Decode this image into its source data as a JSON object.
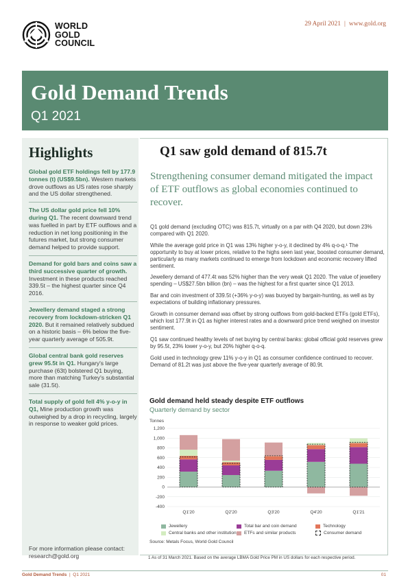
{
  "header": {
    "logo_lines": [
      "WORLD",
      "GOLD",
      "COUNCIL"
    ],
    "date": "29 April 2021",
    "website": "www.gold.org"
  },
  "banner": {
    "title": "Gold Demand Trends",
    "subtitle": "Q1 2021"
  },
  "highlights": {
    "heading": "Highlights",
    "items": [
      {
        "bold": "Global gold ETF holdings fell by 177.9 tonnes (t) (US$9.5bn).",
        "text": " Western markets drove outflows as US rates rose sharply and the US dollar strengthened."
      },
      {
        "bold": "The US dollar gold price fell 10% during Q1.",
        "text": " The recent downward trend was fuelled in part by ETF outflows and a reduction in net long positioning in the futures market, but strong consumer demand helped to provide support."
      },
      {
        "bold": "Demand for gold bars and coins saw a third successive quarter of growth.",
        "text": " Investment in these products reached 339.5t – the highest quarter since Q4 2016."
      },
      {
        "bold": "Jewellery demand staged a strong recovery from lockdown-stricken Q1 2020.",
        "text": " But it remained relatively subdued on a historic basis – 6% below the five-year quarterly average of 505.9t."
      },
      {
        "bold": "Global central bank gold reserves grew 95.5t in Q1.",
        "text": " Hungary's large purchase (63t) bolstered Q1 buying, more than matching Turkey's substantial sale (31.5t)."
      },
      {
        "bold": "Total supply of gold fell 4% y-o-y in Q1,",
        "text": " Mine production growth was outweighed by a drop in recycling, largely in response to weaker gold prices."
      }
    ],
    "contact_line1": "For more information please contact:",
    "contact_line2": "research@gold.org"
  },
  "main": {
    "title": "Q1 saw gold demand of 815.7t",
    "lead": "Strengthening consumer demand mitigated the impact of ETF outflows as global economies continued to recover.",
    "paragraphs": [
      "Q1 gold demand (excluding OTC) was 815.7t, virtually on a par with Q4 2020, but down 23% compared with Q1 2020.",
      "While the average gold price in Q1 was 13% higher y-o-y, it declined by 4% q-o-q.¹ The opportunity to buy at lower prices, relative to the highs seen last year, boosted consumer demand, particularly as many markets continued to emerge from lockdown and economic recovery lifted sentiment.",
      "Jewellery demand of 477.4t was 52% higher than the very weak Q1 2020. The value of jewellery spending – US$27.5bn billion (bn) – was the highest for a first quarter since Q1 2013.",
      "Bar and coin investment of 339.5t (+36% y-o-y) was buoyed by bargain-hunting, as well as by expectations of building inflationary pressures.",
      "Growth in consumer demand was offset by strong outflows from gold-backed ETFs (gold ETFs), which lost 177.9t in Q1 as higher interest rates and a downward price trend weighed on investor sentiment.",
      "Q1 saw continued healthy levels of net buying by central banks: global official gold reserves grew by 95.5t, 23% lower y-o-y, but 20% higher q-o-q.",
      "Gold used in technology grew 11% y-o-y in Q1 as consumer confidence continued to recover. Demand of 81.2t was just above the five-year quarterly average of 80.9t."
    ]
  },
  "chart_title": "Gold demand held steady despite ETF outflows",
  "chart_subtitle": "Quarterly demand by sector",
  "chart_source": "Source: Metals Focus, World Gold Council",
  "footnote": "1  As of 31 March 2021. Based on the average LBMA Gold Price PM in US dollars for each respective period.",
  "chart_data": {
    "type": "bar",
    "stacked": true,
    "ylabel": "Tonnes",
    "ylim": [
      -400,
      1200
    ],
    "yticks": [
      -400,
      -200,
      0,
      200,
      400,
      600,
      800,
      1000,
      1200
    ],
    "ytick_labels": [
      "-400",
      "-200",
      "0",
      "200",
      "400",
      "600",
      "800",
      "1,000",
      "1,200"
    ],
    "categories": [
      "Q1'20",
      "Q2'20",
      "Q3'20",
      "Q4'20",
      "Q1'21"
    ],
    "series": [
      {
        "name": "Jewellery",
        "color": "#8fb8a0",
        "values": [
          315,
          245,
          333,
          515,
          477
        ]
      },
      {
        "name": "Total bar and coin demand",
        "color": "#9a3c97",
        "values": [
          250,
          197,
          223,
          260,
          340
        ]
      },
      {
        "name": "Technology",
        "color": "#e2765a",
        "values": [
          73,
          66,
          75,
          82,
          81
        ]
      },
      {
        "name": "Central banks and other institutions",
        "color": "#d3ecc0",
        "values": [
          125,
          32,
          5,
          45,
          96
        ]
      },
      {
        "name": "ETFs and similar products",
        "color": "#d4a0a0",
        "values": [
          299,
          440,
          274,
          -130,
          -178
        ]
      }
    ],
    "consumer_demand": {
      "name": "Consumer demand",
      "values": [
        615,
        485,
        640,
        875,
        915
      ]
    },
    "grid": true,
    "legend_position": "bottom"
  },
  "footer": {
    "title": "Gold Demand Trends",
    "period": "Q1 2021",
    "page": "01"
  }
}
